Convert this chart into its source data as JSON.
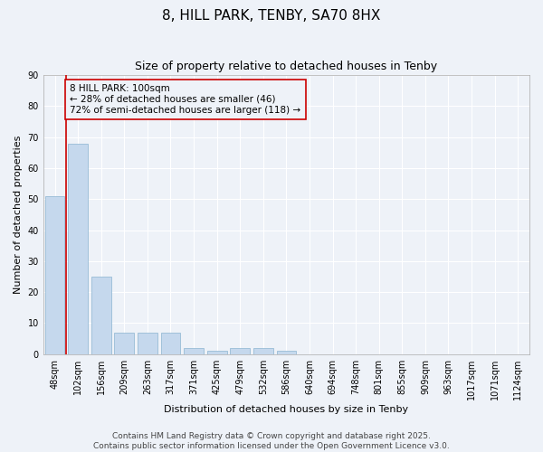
{
  "title": "8, HILL PARK, TENBY, SA70 8HX",
  "subtitle": "Size of property relative to detached houses in Tenby",
  "xlabel": "Distribution of detached houses by size in Tenby",
  "ylabel": "Number of detached properties",
  "categories": [
    "48sqm",
    "102sqm",
    "156sqm",
    "209sqm",
    "263sqm",
    "317sqm",
    "371sqm",
    "425sqm",
    "479sqm",
    "532sqm",
    "586sqm",
    "640sqm",
    "694sqm",
    "748sqm",
    "801sqm",
    "855sqm",
    "909sqm",
    "963sqm",
    "1017sqm",
    "1071sqm",
    "1124sqm"
  ],
  "values": [
    51,
    68,
    25,
    7,
    7,
    7,
    2,
    1,
    2,
    2,
    1,
    0,
    0,
    0,
    0,
    0,
    0,
    0,
    0,
    0,
    0
  ],
  "bar_color": "#c5d8ed",
  "bar_edge_color": "#8ab4d0",
  "ylim": [
    0,
    90
  ],
  "yticks": [
    0,
    10,
    20,
    30,
    40,
    50,
    60,
    70,
    80,
    90
  ],
  "vline_color": "#cc0000",
  "marker_label": "8 HILL PARK: 100sqm",
  "annotation_line1": "← 28% of detached houses are smaller (46)",
  "annotation_line2": "72% of semi-detached houses are larger (118) →",
  "footnote1": "Contains HM Land Registry data © Crown copyright and database right 2025.",
  "footnote2": "Contains public sector information licensed under the Open Government Licence v3.0.",
  "background_color": "#eef2f8",
  "grid_color": "#ffffff",
  "title_fontsize": 11,
  "subtitle_fontsize": 9,
  "axis_label_fontsize": 8,
  "tick_fontsize": 7,
  "annotation_fontsize": 7.5,
  "footnote_fontsize": 6.5
}
